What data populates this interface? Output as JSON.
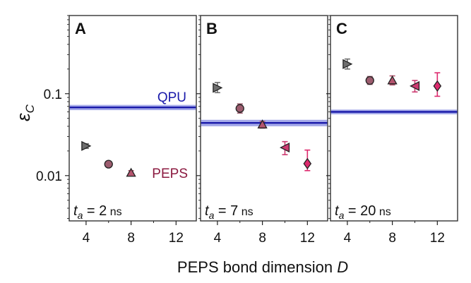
{
  "chart_data": {
    "type": "scatter",
    "xlabel_main": "PEPS bond dimension ",
    "xlabel_var": "D",
    "ylabel_var": "ε",
    "ylabel_sub": "C",
    "y_scale": "log",
    "ylim": [
      0.0028,
      0.9
    ],
    "xlim": [
      2.5,
      13.8
    ],
    "x_ticks": [
      4,
      8,
      12
    ],
    "y_ticks": [
      {
        "value": 0.1,
        "label": "0.1"
      },
      {
        "value": 0.01,
        "label": "0.01"
      }
    ],
    "colors": {
      "qpu": "#1a1aaa",
      "qpu_band": "#7f86e0",
      "peps_label": "#8b1a40",
      "frame": "#333333"
    },
    "series_styles": [
      {
        "D": 4,
        "marker": "triangle-right",
        "color": "#6e6e6e"
      },
      {
        "D": 6,
        "marker": "circle",
        "color": "#9c5c6e"
      },
      {
        "D": 8,
        "marker": "triangle-up",
        "color": "#b5546e"
      },
      {
        "D": 10,
        "marker": "triangle-left",
        "color": "#cc3a70"
      },
      {
        "D": 12,
        "marker": "diamond",
        "color": "#dd2a6e"
      }
    ],
    "panels": [
      {
        "label": "A",
        "time_var": "t",
        "time_sub": "a",
        "time_eq": " = 2",
        "time_unit": " ns",
        "qpu_label": "QPU",
        "peps_label": "PEPS",
        "qpu": {
          "value": 0.068,
          "low": 0.063,
          "high": 0.073
        },
        "points": [
          {
            "D": 4,
            "y": 0.023,
            "ylo": 0.0215,
            "yhi": 0.0245
          },
          {
            "D": 6,
            "y": 0.0138,
            "ylo": 0.0128,
            "yhi": 0.0148
          },
          {
            "D": 8,
            "y": 0.0108,
            "ylo": 0.0101,
            "yhi": 0.0115
          }
        ]
      },
      {
        "label": "B",
        "time_var": "t",
        "time_sub": "a",
        "time_eq": " = 7",
        "time_unit": " ns",
        "qpu": {
          "value": 0.044,
          "low": 0.04,
          "high": 0.048
        },
        "points": [
          {
            "D": 4,
            "y": 0.118,
            "ylo": 0.103,
            "yhi": 0.137
          },
          {
            "D": 6,
            "y": 0.066,
            "ylo": 0.058,
            "yhi": 0.075
          },
          {
            "D": 8,
            "y": 0.042,
            "ylo": 0.038,
            "yhi": 0.046
          },
          {
            "D": 10,
            "y": 0.022,
            "ylo": 0.018,
            "yhi": 0.026
          },
          {
            "D": 12,
            "y": 0.014,
            "ylo": 0.0115,
            "yhi": 0.0205
          }
        ]
      },
      {
        "label": "C",
        "time_var": "t",
        "time_sub": "a",
        "time_eq": " = 20",
        "time_unit": " ns",
        "qpu": {
          "value": 0.06,
          "low": 0.056,
          "high": 0.064
        },
        "points": [
          {
            "D": 4,
            "y": 0.23,
            "ylo": 0.2,
            "yhi": 0.265
          },
          {
            "D": 6,
            "y": 0.145,
            "ylo": 0.13,
            "yhi": 0.162
          },
          {
            "D": 8,
            "y": 0.145,
            "ylo": 0.128,
            "yhi": 0.165
          },
          {
            "D": 10,
            "y": 0.124,
            "ylo": 0.105,
            "yhi": 0.145
          },
          {
            "D": 12,
            "y": 0.124,
            "ylo": 0.093,
            "yhi": 0.18
          }
        ]
      }
    ]
  }
}
